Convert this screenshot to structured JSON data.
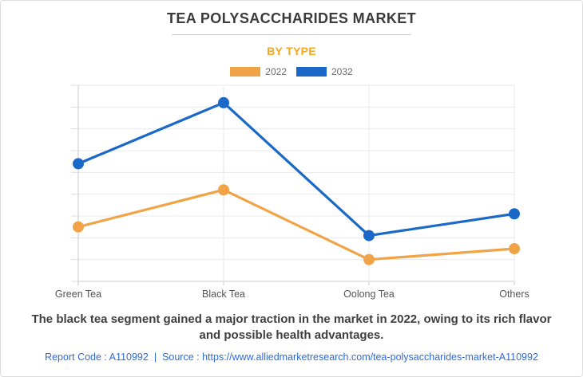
{
  "header": {
    "title": "TEA POLYSACCHARIDES MARKET",
    "subtitle": "BY TYPE"
  },
  "legend": [
    {
      "label": "2022",
      "color": "#F0A347"
    },
    {
      "label": "2032",
      "color": "#1A69C8"
    }
  ],
  "chart_data": {
    "type": "line",
    "categories": [
      "Green Tea",
      "Black Tea",
      "Oolong Tea",
      "Others"
    ],
    "series": [
      {
        "name": "2022",
        "color": "#F0A347",
        "values": [
          2.5,
          4.2,
          1.0,
          1.5
        ]
      },
      {
        "name": "2032",
        "color": "#1A69C8",
        "values": [
          5.4,
          8.2,
          2.1,
          3.1
        ]
      }
    ],
    "title": "TEA POLYSACCHARIDES MARKET",
    "subtitle": "BY TYPE",
    "xlabel": "",
    "ylabel": "",
    "ylim": [
      0,
      9
    ],
    "y_tick_step": 1,
    "y_tick_labels_visible": false,
    "grid": true,
    "legend_position": "top",
    "value_note": "y-axis has no visible tick labels; values estimated in horizontal-gridline units measured from the bottom axis"
  },
  "footer": {
    "insight_lines": [
      "The black tea segment gained a major traction in the market in 2022, owing to its rich flavor",
      "and possible health advantages."
    ],
    "report_code": "Report Code : A110992",
    "divider": "|",
    "source_prefix": "Source :",
    "source_url": "https://www.alliedmarketresearch.com/tea-polysaccharides-market-A110992"
  }
}
